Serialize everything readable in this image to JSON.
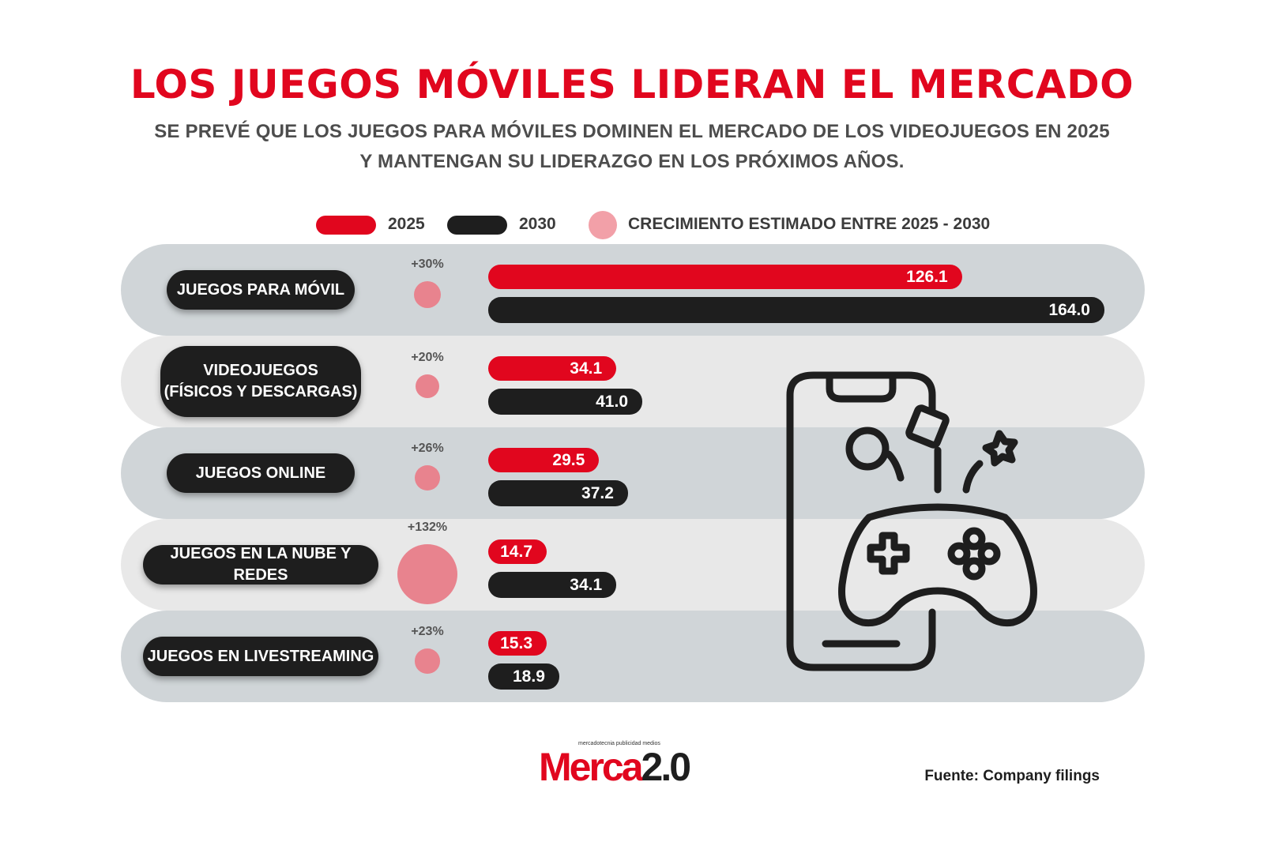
{
  "title": "LOS JUEGOS MÓVILES LIDERAN EL MERCADO",
  "subtitle_line1": "SE PREVÉ QUE LOS JUEGOS PARA MÓVILES DOMINEN EL MERCADO DE LOS VIDEOJUEGOS EN 2025",
  "subtitle_line2": "Y MANTENGAN SU LIDERAZGO EN LOS PRÓXIMOS AÑOS.",
  "legend": {
    "label_2025": "2025",
    "label_2030": "2030",
    "label_growth": "CRECIMIENTO ESTIMADO ENTRE 2025 - 2030"
  },
  "colors": {
    "red": "#e1061e",
    "black": "#1e1e1e",
    "pink": "#e8838e",
    "band_dark": "#d0d5d8",
    "band_light": "#e8e8e8"
  },
  "chart_data": {
    "type": "bar",
    "orientation": "horizontal",
    "categories": [
      "JUEGOS PARA MÓVIL",
      "VIDEOJUEGOS\n(FÍSICOS Y DESCARGAS)",
      "JUEGOS ONLINE",
      "JUEGOS EN LA NUBE Y REDES",
      "JUEGOS  EN LIVESTREAMING"
    ],
    "series": [
      {
        "name": "2025",
        "values": [
          126.1,
          34.1,
          29.5,
          14.7,
          15.3
        ],
        "labels": [
          "126.1",
          "34.1",
          "29.5",
          "14.7",
          "15.3"
        ],
        "color": "#e1061e"
      },
      {
        "name": "2030",
        "values": [
          164.0,
          41.0,
          37.2,
          34.1,
          18.9
        ],
        "labels": [
          "164.0",
          "41.0",
          "37.2",
          "34.1",
          "18.9"
        ],
        "color": "#1e1e1e"
      }
    ],
    "growth": {
      "name": "CRECIMIENTO ESTIMADO ENTRE 2025 - 2030",
      "labels": [
        "+30%",
        "+20%",
        "+26%",
        "+132%",
        "+23%"
      ],
      "values": [
        30,
        20,
        26,
        132,
        23
      ]
    },
    "xlim": [
      0,
      164.0
    ],
    "grid": false,
    "legend_position": "top"
  },
  "footer": {
    "logo_tagline": "mercadotecnia publicidad medios",
    "logo_main": "Merca",
    "logo_version": "2.0",
    "source": "Fuente: Company filings"
  },
  "illustration": {
    "icon": "mobile-gamepad-icon"
  }
}
